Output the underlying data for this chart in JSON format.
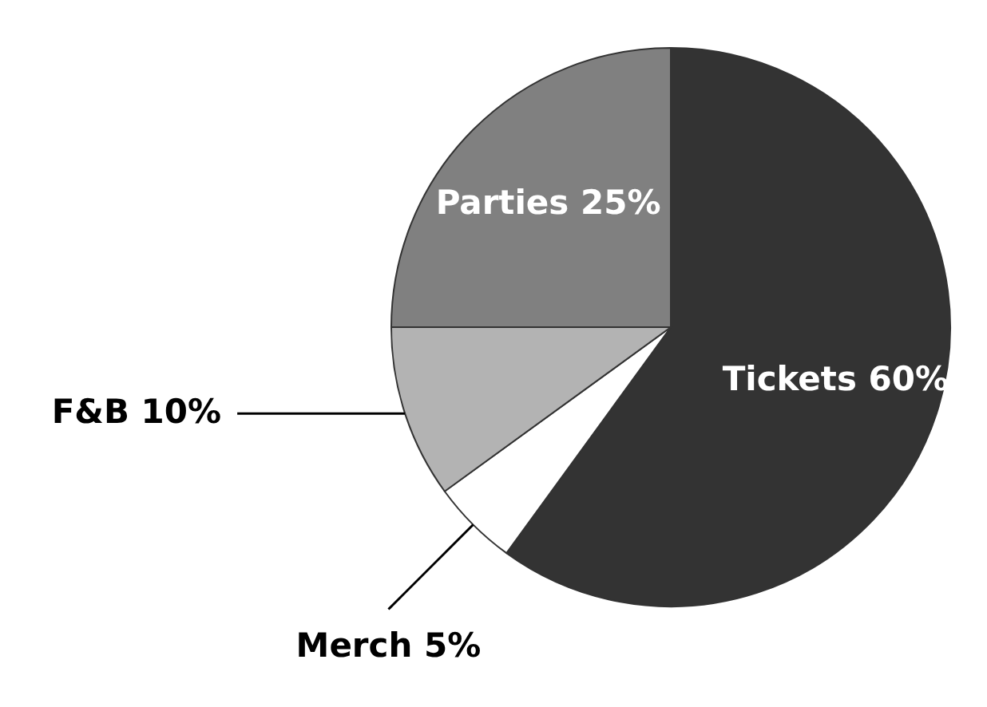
{
  "chart_data": {
    "type": "pie",
    "categories": [
      "Tickets",
      "Merch",
      "F&B",
      "Parties"
    ],
    "values": [
      60,
      5,
      10,
      25
    ],
    "colors": [
      "#333333",
      "#ffffff",
      "#b3b3b3",
      "#808080"
    ],
    "value_labels": [
      "60%",
      "5%",
      "10%",
      "25%"
    ]
  }
}
